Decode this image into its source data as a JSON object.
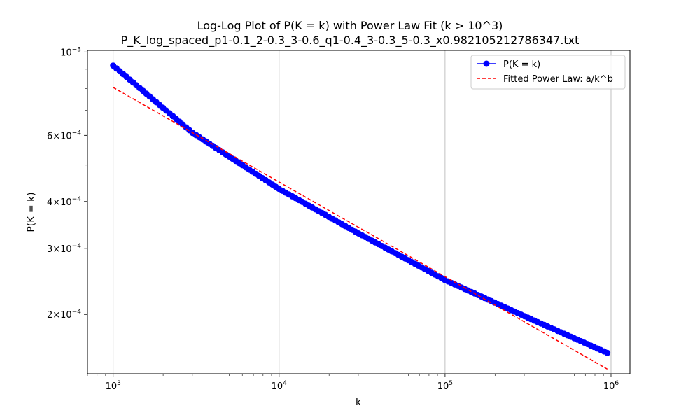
{
  "chart_data": {
    "type": "line",
    "title_line1": "Log-Log Plot of P(K = k) with Power Law Fit (k > 10^3)",
    "title_line2": "P_K_log_spaced_p1-0.1_2-0.3_3-0.6_q1-0.4_3-0.3_5-0.3_x0.982105212786347.txt",
    "xlabel": "k",
    "ylabel": "P(K = k)",
    "x_scale": "log",
    "y_scale": "log",
    "xlim": [
      700,
      1300000
    ],
    "ylim": [
      0.000139,
      0.00101
    ],
    "grid": "vertical major only",
    "legend_position": "top-right",
    "x_ticks": [
      {
        "value": 1000,
        "base": "10",
        "exp": "3"
      },
      {
        "value": 10000,
        "base": "10",
        "exp": "4"
      },
      {
        "value": 100000,
        "base": "10",
        "exp": "5"
      },
      {
        "value": 1000000,
        "base": "10",
        "exp": "6"
      }
    ],
    "y_ticks": [
      {
        "value": 0.001,
        "mant": "",
        "base": "10",
        "exp": "−3"
      },
      {
        "value": 0.0006,
        "mant": "6×",
        "base": "10",
        "exp": "−4"
      },
      {
        "value": 0.0004,
        "mant": "4×",
        "base": "10",
        "exp": "−4"
      },
      {
        "value": 0.0003,
        "mant": "3×",
        "base": "10",
        "exp": "−4"
      },
      {
        "value": 0.0002,
        "mant": "2×",
        "base": "10",
        "exp": "−4"
      }
    ],
    "series": [
      {
        "name": "P(K = k)",
        "style": "line-with-markers",
        "color": "#0000ff",
        "x_range": [
          1000,
          950000
        ],
        "points": 150,
        "anchors": [
          [
            1000,
            0.00092
          ],
          [
            3000,
            0.00061
          ],
          [
            10000,
            0.000432
          ],
          [
            30000,
            0.000329
          ],
          [
            100000,
            0.000247
          ],
          [
            300000,
            0.000198
          ],
          [
            950000,
            0.000158
          ]
        ]
      },
      {
        "name": "Fitted Power Law: a/k^b",
        "style": "dashed-line",
        "color": "#ff0000",
        "x": [
          1000,
          950000
        ],
        "y": [
          0.000805,
          0.000143
        ]
      }
    ]
  }
}
